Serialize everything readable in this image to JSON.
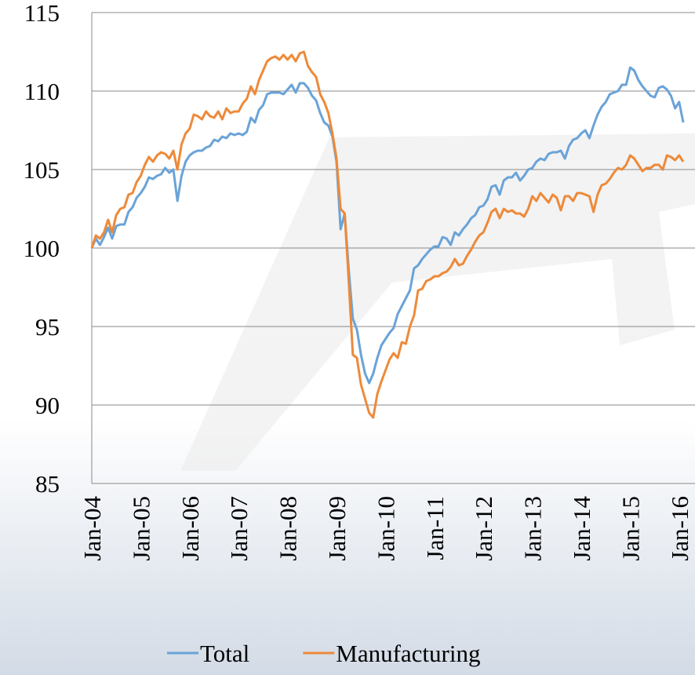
{
  "chart_data": {
    "type": "line",
    "categories": [
      "Jan-04",
      null,
      null,
      null,
      null,
      null,
      null,
      null,
      null,
      null,
      null,
      null,
      "Jan-05",
      null,
      null,
      null,
      null,
      null,
      null,
      null,
      null,
      null,
      null,
      null,
      "Jan-06",
      null,
      null,
      null,
      null,
      null,
      null,
      null,
      null,
      null,
      null,
      null,
      "Jan-07",
      null,
      null,
      null,
      null,
      null,
      null,
      null,
      null,
      null,
      null,
      null,
      "Jan-08",
      null,
      null,
      null,
      null,
      null,
      null,
      null,
      null,
      null,
      null,
      null,
      "Jan-09",
      null,
      null,
      null,
      null,
      null,
      null,
      null,
      null,
      null,
      null,
      null,
      "Jan-10",
      null,
      null,
      null,
      null,
      null,
      null,
      null,
      null,
      null,
      null,
      null,
      "Jan-11",
      null,
      null,
      null,
      null,
      null,
      null,
      null,
      null,
      null,
      null,
      null,
      "Jan-12",
      null,
      null,
      null,
      null,
      null,
      null,
      null,
      null,
      null,
      null,
      null,
      "Jan-13",
      null,
      null,
      null,
      null,
      null,
      null,
      null,
      null,
      null,
      null,
      null,
      "Jan-14",
      null,
      null,
      null,
      null,
      null,
      null,
      null,
      null,
      null,
      null,
      null,
      "Jan-15",
      null,
      null,
      null,
      null,
      null,
      null,
      null,
      null,
      null,
      null,
      null,
      "Jan-16",
      null
    ],
    "series": [
      {
        "name": "Total",
        "color": "#6aa3d8",
        "values": [
          100,
          100.6,
          100.2,
          100.7,
          101.3,
          100.6,
          101.4,
          101.5,
          101.5,
          102.3,
          102.6,
          103.2,
          103.5,
          103.9,
          104.5,
          104.4,
          104.6,
          104.7,
          105.1,
          104.8,
          105.0,
          103.0,
          104.6,
          105.5,
          105.9,
          106.1,
          106.2,
          106.2,
          106.4,
          106.5,
          106.9,
          106.8,
          107.1,
          107.0,
          107.3,
          107.2,
          107.3,
          107.2,
          107.4,
          108.3,
          108.0,
          108.8,
          109.1,
          109.8,
          109.9,
          109.9,
          109.9,
          109.8,
          110.1,
          110.4,
          109.9,
          110.5,
          110.5,
          110.2,
          109.7,
          109.4,
          108.6,
          108.0,
          107.8,
          107.1,
          105.5,
          101.2,
          102.2,
          98.6,
          95.5,
          94.8,
          93.2,
          92.0,
          91.4,
          92.0,
          93.0,
          93.8,
          94.2,
          94.6,
          94.9,
          95.8,
          96.3,
          96.8,
          97.3,
          98.7,
          98.9,
          99.3,
          99.6,
          99.9,
          100.1,
          100.1,
          100.7,
          100.6,
          100.2,
          101.0,
          100.8,
          101.2,
          101.5,
          101.9,
          102.1,
          102.6,
          102.7,
          103.1,
          103.9,
          104.0,
          103.4,
          104.3,
          104.5,
          104.5,
          104.8,
          104.3,
          104.6,
          105.0,
          105.1,
          105.5,
          105.7,
          105.6,
          106.0,
          106.1,
          106.1,
          106.2,
          105.7,
          106.5,
          106.9,
          107.0,
          107.3,
          107.5,
          107.0,
          107.8,
          108.5,
          109.0,
          109.3,
          109.8,
          109.9,
          110.0,
          110.4,
          110.4,
          111.5,
          111.3,
          110.7,
          110.3,
          110.0,
          109.7,
          109.6,
          110.2,
          110.3,
          110.1,
          109.7,
          108.9,
          109.3,
          108.0
        ]
      },
      {
        "name": "Manufacturing",
        "color": "#ed8a3a",
        "values": [
          100,
          100.8,
          100.6,
          101.0,
          101.8,
          101.0,
          102.1,
          102.5,
          102.6,
          103.4,
          103.5,
          104.2,
          104.6,
          105.3,
          105.8,
          105.5,
          105.9,
          106.1,
          106.0,
          105.7,
          106.2,
          105.0,
          106.6,
          107.3,
          107.6,
          108.5,
          108.4,
          108.2,
          108.7,
          108.4,
          108.3,
          108.7,
          108.2,
          108.9,
          108.6,
          108.7,
          108.7,
          109.2,
          109.5,
          110.3,
          109.8,
          110.7,
          111.3,
          111.9,
          112.1,
          112.2,
          112.0,
          112.3,
          112.0,
          112.3,
          111.9,
          112.4,
          112.5,
          111.6,
          111.2,
          110.9,
          109.8,
          109.3,
          108.6,
          107.3,
          105.7,
          102.5,
          102.2,
          97.9,
          93.2,
          93.0,
          91.3,
          90.4,
          89.5,
          89.2,
          90.7,
          91.5,
          92.2,
          92.9,
          93.3,
          93.0,
          94.0,
          93.9,
          95.0,
          95.7,
          97.3,
          97.4,
          97.9,
          98.0,
          98.2,
          98.2,
          98.4,
          98.5,
          98.8,
          99.3,
          98.9,
          99.0,
          99.5,
          99.9,
          100.4,
          100.8,
          101.0,
          101.6,
          102.3,
          102.5,
          101.9,
          102.5,
          102.3,
          102.4,
          102.2,
          102.2,
          102.0,
          102.5,
          103.3,
          103.0,
          103.5,
          103.2,
          102.9,
          103.4,
          103.2,
          102.4,
          103.3,
          103.3,
          103.0,
          103.5,
          103.5,
          103.4,
          103.3,
          102.3,
          103.4,
          104.0,
          104.1,
          104.4,
          104.8,
          105.1,
          105.0,
          105.3,
          105.9,
          105.7,
          105.3,
          104.9,
          105.1,
          105.1,
          105.3,
          105.3,
          105.0,
          105.9,
          105.8,
          105.6,
          105.9,
          105.5
        ]
      }
    ],
    "ylim": [
      85,
      115
    ],
    "yticks": [
      85,
      90,
      95,
      100,
      105,
      110,
      115
    ],
    "grid": true,
    "legend": "bottom"
  }
}
